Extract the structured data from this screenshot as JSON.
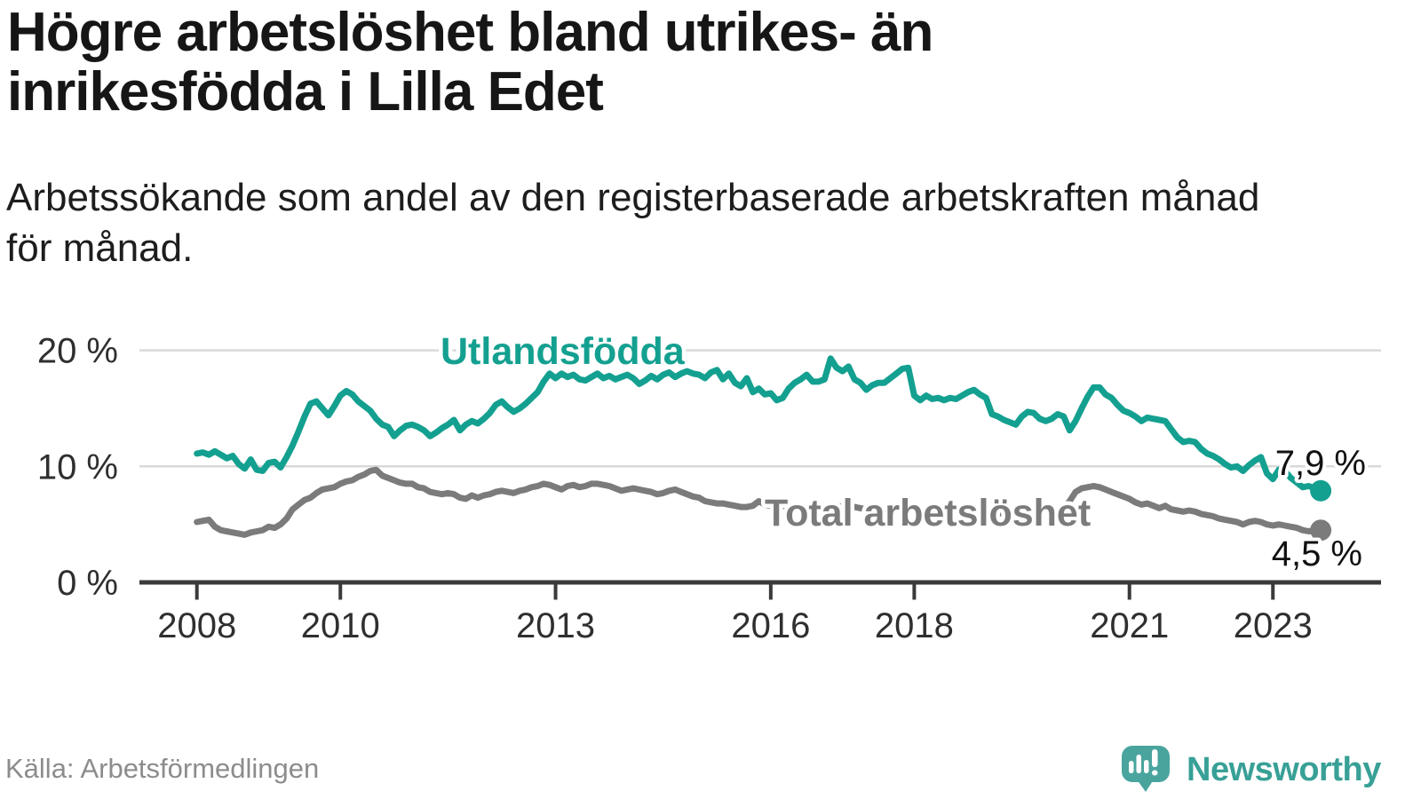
{
  "header": {
    "title": "Högre arbetslöshet bland utrikes- än inrikesfödda i Lilla Edet",
    "subtitle": "Arbetssökande som andel av den registerbaserade arbetskraften månad för månad."
  },
  "footer": {
    "source": "Källa: Arbetsförmedlingen",
    "logo_text": "Newsworthy"
  },
  "colors": {
    "title_text": "#161616",
    "subtitle_text": "#1d1d1d",
    "source_text": "#8c8c8c",
    "logo_bubble": "#4aa49e",
    "logo_wordmark": "#38a096"
  },
  "chart_data": {
    "type": "line",
    "x_unit": "month",
    "x_start": "2008-01",
    "x_end": "2023-09",
    "x_tick_years": [
      2008,
      2010,
      2013,
      2016,
      2018,
      2021,
      2023
    ],
    "y_ticks": [
      {
        "value": 0,
        "label": "0 %"
      },
      {
        "value": 10,
        "label": "10 %"
      },
      {
        "value": 20,
        "label": "20 %"
      }
    ],
    "ylim": [
      0,
      21.8
    ],
    "grid": "horizontal",
    "legend_position": "inline-labels",
    "style": {
      "grid_color": "#d9d9d9",
      "axis_color": "#3a3a3a",
      "tick_label_color": "#2f2f2f",
      "value_label_color": "#111111"
    },
    "series": [
      {
        "name": "Utlandsfödda",
        "color": "#14a090",
        "end_label": "7,9 %",
        "last_value": 7.9,
        "values": [
          11.1,
          11.2,
          11.0,
          11.3,
          11.0,
          10.7,
          10.9,
          10.2,
          9.8,
          10.6,
          9.7,
          9.6,
          10.3,
          10.4,
          9.9,
          10.8,
          11.8,
          13.0,
          14.3,
          15.4,
          15.6,
          15.0,
          14.4,
          15.2,
          16.1,
          16.5,
          16.2,
          15.6,
          15.2,
          14.8,
          14.1,
          13.6,
          13.4,
          12.6,
          13.1,
          13.5,
          13.6,
          13.4,
          13.1,
          12.6,
          12.9,
          13.3,
          13.6,
          14.0,
          13.1,
          13.6,
          13.9,
          13.7,
          14.1,
          14.6,
          15.3,
          15.6,
          15.1,
          14.7,
          15.0,
          15.4,
          15.9,
          16.4,
          17.3,
          18.0,
          17.6,
          18.0,
          17.7,
          17.9,
          17.5,
          17.4,
          17.7,
          18.0,
          17.6,
          17.8,
          17.5,
          17.7,
          17.9,
          17.6,
          17.1,
          17.4,
          17.8,
          17.5,
          17.9,
          18.1,
          17.7,
          18.0,
          18.2,
          18.0,
          17.9,
          17.6,
          18.1,
          18.3,
          17.5,
          18.0,
          17.2,
          16.9,
          17.6,
          16.4,
          16.7,
          16.2,
          16.3,
          15.7,
          15.9,
          16.7,
          17.2,
          17.5,
          17.9,
          17.3,
          17.3,
          17.5,
          19.3,
          18.5,
          18.2,
          18.6,
          17.5,
          17.2,
          16.6,
          17.0,
          17.2,
          17.2,
          17.6,
          18.0,
          18.4,
          18.5,
          16.1,
          15.7,
          16.1,
          15.8,
          15.9,
          15.7,
          15.9,
          15.8,
          16.1,
          16.4,
          16.6,
          16.2,
          15.9,
          14.5,
          14.3,
          14.0,
          13.8,
          13.6,
          14.3,
          14.7,
          14.6,
          14.1,
          13.9,
          14.1,
          14.5,
          14.3,
          13.1,
          13.9,
          15.0,
          16.0,
          16.8,
          16.8,
          16.2,
          15.9,
          15.3,
          14.8,
          14.6,
          14.3,
          13.9,
          14.2,
          14.1,
          14.0,
          13.9,
          13.2,
          12.5,
          12.1,
          12.2,
          12.1,
          11.5,
          11.1,
          10.9,
          10.6,
          10.2,
          9.9,
          10.0,
          9.6,
          10.1,
          10.5,
          10.8,
          9.4,
          8.9,
          9.7,
          9.6,
          9.0,
          8.6,
          8.2,
          8.3,
          8.1,
          7.9
        ]
      },
      {
        "name": "Total arbetslöshet",
        "color": "#7b7b7b",
        "end_label": "4,5 %",
        "last_value": 4.5,
        "values": [
          5.2,
          5.3,
          5.4,
          4.8,
          4.5,
          4.4,
          4.3,
          4.2,
          4.1,
          4.3,
          4.4,
          4.5,
          4.8,
          4.7,
          5.0,
          5.5,
          6.3,
          6.7,
          7.1,
          7.3,
          7.7,
          8.0,
          8.1,
          8.2,
          8.5,
          8.7,
          8.8,
          9.1,
          9.3,
          9.6,
          9.7,
          9.2,
          9.0,
          8.8,
          8.6,
          8.5,
          8.5,
          8.2,
          8.1,
          7.8,
          7.7,
          7.6,
          7.7,
          7.6,
          7.3,
          7.2,
          7.5,
          7.3,
          7.5,
          7.6,
          7.8,
          7.9,
          7.8,
          7.7,
          7.9,
          8.0,
          8.2,
          8.3,
          8.5,
          8.4,
          8.2,
          8.0,
          8.3,
          8.4,
          8.2,
          8.3,
          8.5,
          8.5,
          8.4,
          8.3,
          8.1,
          7.9,
          8.0,
          8.1,
          8.0,
          7.9,
          7.8,
          7.6,
          7.7,
          7.9,
          8.0,
          7.8,
          7.6,
          7.4,
          7.3,
          7.0,
          6.9,
          6.8,
          6.8,
          6.7,
          6.6,
          6.5,
          6.5,
          6.6,
          7.0,
          6.7,
          6.6,
          6.5,
          6.6,
          6.5,
          6.4,
          6.3,
          6.4,
          6.5,
          6.4,
          6.5,
          6.6,
          6.6,
          6.5,
          6.6,
          6.5,
          6.4,
          6.3,
          6.4,
          6.5,
          6.4,
          6.5,
          6.6,
          6.7,
          6.6,
          6.4,
          6.3,
          6.3,
          6.2,
          6.1,
          6.2,
          6.3,
          6.2,
          6.3,
          6.4,
          6.5,
          6.4,
          6.3,
          6.1,
          6.0,
          5.9,
          5.9,
          6.0,
          6.2,
          6.3,
          6.2,
          6.1,
          6.2,
          6.3,
          6.3,
          6.4,
          7.0,
          7.8,
          8.1,
          8.2,
          8.3,
          8.2,
          8.0,
          7.8,
          7.6,
          7.4,
          7.2,
          6.9,
          6.7,
          6.8,
          6.6,
          6.4,
          6.6,
          6.3,
          6.2,
          6.1,
          6.2,
          6.1,
          5.9,
          5.8,
          5.7,
          5.5,
          5.4,
          5.3,
          5.2,
          5.0,
          5.2,
          5.3,
          5.2,
          5.0,
          4.9,
          5.0,
          4.9,
          4.8,
          4.7,
          4.5,
          4.4,
          4.5,
          4.5
        ]
      }
    ]
  }
}
